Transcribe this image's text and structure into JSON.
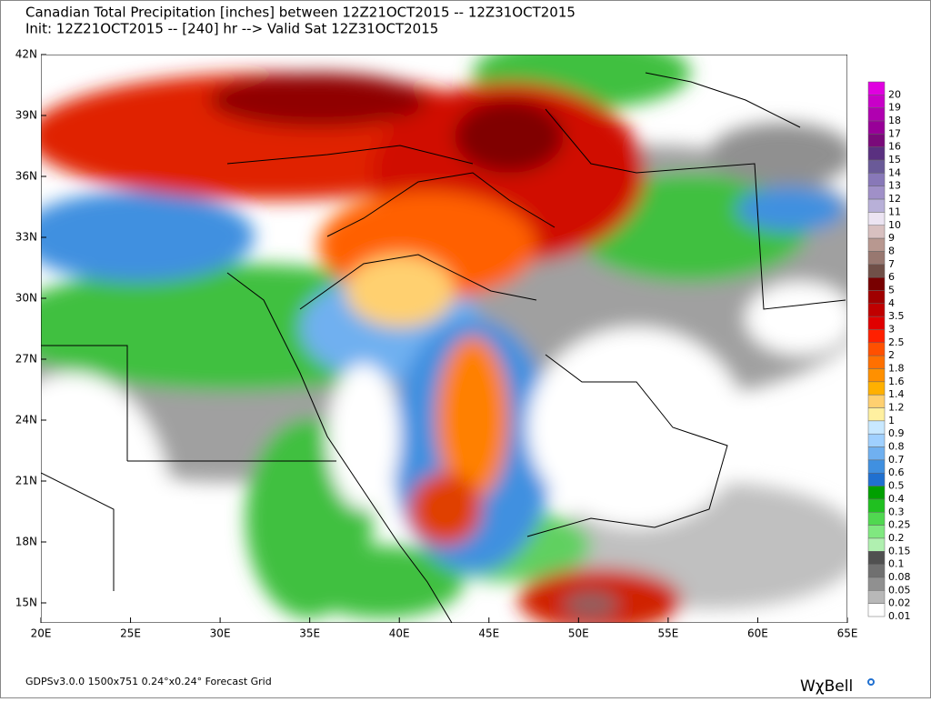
{
  "header": {
    "title": "Canadian Total Precipitation [inches] between 12Z21OCT2015 -- 12Z31OCT2015",
    "subtitle": "Init: 12Z21OCT2015 -- [240] hr --> Valid Sat 12Z31OCT2015"
  },
  "map": {
    "lat_labels": [
      "42N",
      "39N",
      "36N",
      "33N",
      "30N",
      "27N",
      "24N",
      "21N",
      "18N",
      "15N"
    ],
    "lon_labels": [
      "20E",
      "25E",
      "30E",
      "35E",
      "40E",
      "45E",
      "50E",
      "55E",
      "60E",
      "65E"
    ]
  },
  "colorbar": {
    "levels": [
      {
        "label": "20",
        "color": "#e000e0"
      },
      {
        "label": "19",
        "color": "#c800c8"
      },
      {
        "label": "18",
        "color": "#b000b0"
      },
      {
        "label": "17",
        "color": "#980098"
      },
      {
        "label": "16",
        "color": "#7a0a7a"
      },
      {
        "label": "15",
        "color": "#5a3080"
      },
      {
        "label": "14",
        "color": "#6a5a98"
      },
      {
        "label": "13",
        "color": "#8878b8"
      },
      {
        "label": "12",
        "color": "#a090c8"
      },
      {
        "label": "11",
        "color": "#b8b0d8"
      },
      {
        "label": "10",
        "color": "#ece4f2"
      },
      {
        "label": "9",
        "color": "#d8c0c0"
      },
      {
        "label": "8",
        "color": "#b89890"
      },
      {
        "label": "7",
        "color": "#987870"
      },
      {
        "label": "6",
        "color": "#705048"
      },
      {
        "label": "5",
        "color": "#780000"
      },
      {
        "label": "4",
        "color": "#a00000"
      },
      {
        "label": "3.5",
        "color": "#c00000"
      },
      {
        "label": "3",
        "color": "#e00000"
      },
      {
        "label": "2.5",
        "color": "#ff2000"
      },
      {
        "label": "2",
        "color": "#ff5000"
      },
      {
        "label": "1.8",
        "color": "#ff7000"
      },
      {
        "label": "1.6",
        "color": "#ff9000"
      },
      {
        "label": "1.4",
        "color": "#ffb000"
      },
      {
        "label": "1.2",
        "color": "#ffd070"
      },
      {
        "label": "1",
        "color": "#fff0a0"
      },
      {
        "label": "0.9",
        "color": "#c8e8ff"
      },
      {
        "label": "0.8",
        "color": "#a0d0ff"
      },
      {
        "label": "0.7",
        "color": "#70b0f0"
      },
      {
        "label": "0.6",
        "color": "#4090e0"
      },
      {
        "label": "0.5",
        "color": "#2070d0"
      },
      {
        "label": "0.4",
        "color": "#00a000"
      },
      {
        "label": "0.3",
        "color": "#20c020"
      },
      {
        "label": "0.25",
        "color": "#50d850"
      },
      {
        "label": "0.2",
        "color": "#80e880"
      },
      {
        "label": "0.15",
        "color": "#b0f0b0"
      },
      {
        "label": "0.1",
        "color": "#505050"
      },
      {
        "label": "0.08",
        "color": "#707070"
      },
      {
        "label": "0.05",
        "color": "#909090"
      },
      {
        "label": "0.02",
        "color": "#b8b8b8"
      },
      {
        "label": "0.01",
        "color": "#ffffff"
      }
    ]
  },
  "footer": {
    "info": "GDPSv3.0.0 1500x751 0.24°x0.24° Forecast Grid",
    "logo": "WχBell"
  }
}
